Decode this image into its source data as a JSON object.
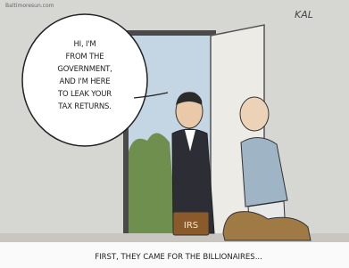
{
  "watermark": "Baltimoresun.com",
  "signature": "KAL",
  "speech_bubble": {
    "lines": [
      "HI, I'M",
      "FROM THE",
      "GOVERNMENT,",
      "AND I'M HERE",
      "TO LEAK YOUR",
      "TAX RETURNS."
    ]
  },
  "briefcase_label": "IRS",
  "caption": "FIRST, THEY CAME FOR THE BILLIONAIRES..."
}
